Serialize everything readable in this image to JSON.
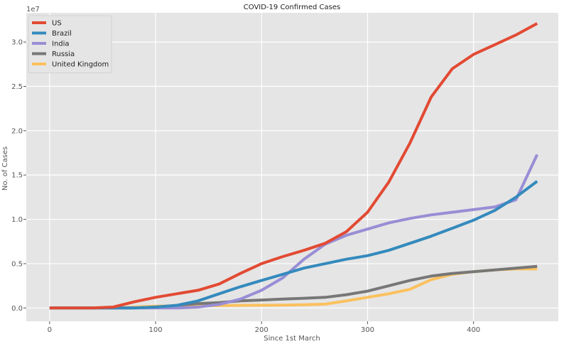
{
  "chart_data": {
    "type": "line",
    "title": "COVID-19 Confirmed Cases",
    "xlabel": "Since 1st March",
    "ylabel": "No. of Cases",
    "y_offset_label": "1e7",
    "xlim": [
      -22,
      480
    ],
    "ylim": [
      -0.15,
      3.33
    ],
    "x_ticks": [
      0,
      100,
      200,
      300,
      400
    ],
    "y_ticks": [
      0.0,
      0.5,
      1.0,
      1.5,
      2.0,
      2.5,
      3.0
    ],
    "y_tick_labels": [
      "0.0",
      "0.5",
      "1.0",
      "1.5",
      "2.0",
      "2.5",
      "3.0"
    ],
    "grid": true,
    "legend_position": "top-left",
    "background": "#e5e5e5",
    "x": [
      0,
      20,
      40,
      60,
      80,
      100,
      120,
      140,
      160,
      180,
      200,
      220,
      240,
      260,
      280,
      300,
      320,
      340,
      360,
      380,
      400,
      420,
      440,
      460
    ],
    "series": [
      {
        "name": "US",
        "color": "#e24a33",
        "values": [
          0.0,
          0.0,
          0.0,
          0.01,
          0.07,
          0.12,
          0.16,
          0.2,
          0.27,
          0.39,
          0.5,
          0.58,
          0.65,
          0.73,
          0.86,
          1.08,
          1.42,
          1.86,
          2.38,
          2.7,
          2.86,
          2.97,
          3.08,
          3.21
        ]
      },
      {
        "name": "Brazil",
        "color": "#348abd",
        "values": [
          0.0,
          0.0,
          0.0,
          0.0,
          0.0,
          0.01,
          0.03,
          0.08,
          0.16,
          0.24,
          0.31,
          0.38,
          0.45,
          0.5,
          0.55,
          0.59,
          0.65,
          0.73,
          0.81,
          0.9,
          0.99,
          1.1,
          1.25,
          1.43
        ]
      },
      {
        "name": "India",
        "color": "#988ed5",
        "values": [
          0.0,
          0.0,
          0.0,
          0.0,
          0.0,
          0.0,
          0.0,
          0.01,
          0.04,
          0.1,
          0.2,
          0.34,
          0.55,
          0.72,
          0.82,
          0.89,
          0.96,
          1.01,
          1.05,
          1.08,
          1.11,
          1.14,
          1.22,
          1.73
        ]
      },
      {
        "name": "Russia",
        "color": "#777777",
        "values": [
          0.0,
          0.0,
          0.0,
          0.0,
          0.0,
          0.01,
          0.03,
          0.05,
          0.06,
          0.08,
          0.09,
          0.1,
          0.11,
          0.12,
          0.15,
          0.19,
          0.25,
          0.31,
          0.36,
          0.39,
          0.41,
          0.43,
          0.45,
          0.47
        ]
      },
      {
        "name": "United Kingdom",
        "color": "#fbc15e",
        "values": [
          0.0,
          0.0,
          0.0,
          0.0,
          0.01,
          0.02,
          0.025,
          0.025,
          0.027,
          0.03,
          0.031,
          0.032,
          0.036,
          0.043,
          0.08,
          0.12,
          0.16,
          0.21,
          0.32,
          0.38,
          0.41,
          0.43,
          0.44,
          0.44
        ]
      }
    ]
  }
}
